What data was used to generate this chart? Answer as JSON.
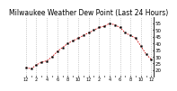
{
  "title": "Milwaukee Weather Dew Point (Last 24 Hours)",
  "x_values": [
    0,
    1,
    2,
    3,
    4,
    5,
    6,
    7,
    8,
    9,
    10,
    11,
    12,
    13,
    14,
    15,
    16,
    17,
    18,
    19,
    20,
    21,
    22,
    23,
    24
  ],
  "y_values": [
    22,
    21,
    24,
    26,
    27,
    30,
    34,
    37,
    40,
    42,
    44,
    46,
    48,
    50,
    52,
    53,
    55,
    54,
    52,
    48,
    46,
    44,
    38,
    32,
    28
  ],
  "ylim": [
    15,
    60
  ],
  "yticks": [
    20,
    25,
    30,
    35,
    40,
    45,
    50,
    55
  ],
  "xtick_labels": [
    "12",
    "1",
    "2",
    "3",
    "4",
    "5",
    "6",
    "7",
    "8",
    "9",
    "10",
    "11",
    "12",
    "1",
    "2",
    "3",
    "4",
    "5",
    "6",
    "7",
    "8",
    "9",
    "10",
    "11",
    "12"
  ],
  "line_color": "#cc0000",
  "marker_color": "#000000",
  "bg_color": "#ffffff",
  "grid_color": "#aaaaaa",
  "title_fontsize": 5.5,
  "axis_fontsize": 4.0
}
